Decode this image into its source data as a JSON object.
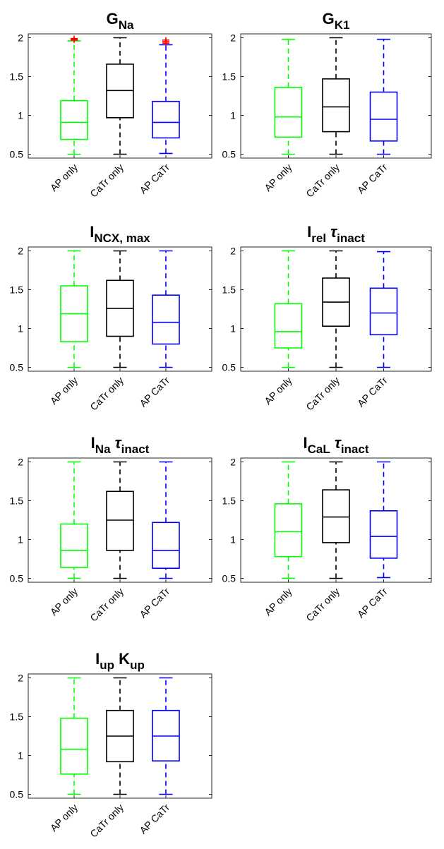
{
  "chart_data": [
    {
      "type": "box",
      "title_parts": [
        {
          "text": "G",
          "sub": false,
          "greek": false
        },
        {
          "text": "Na",
          "sub": true,
          "greek": false
        }
      ],
      "categories": [
        "AP only",
        "CaTr only",
        "AP CaTr"
      ],
      "colors": [
        "#00ff00",
        "#000000",
        "#0000ff"
      ],
      "ylim": [
        0.45,
        2.05
      ],
      "yticks": [
        0.5,
        1,
        1.5,
        2
      ],
      "series": [
        {
          "min": 0.5,
          "q1": 0.69,
          "median": 0.91,
          "q3": 1.19,
          "max": 1.96,
          "outliers": [
            1.97,
            1.98,
            1.99
          ]
        },
        {
          "min": 0.5,
          "q1": 0.97,
          "median": 1.32,
          "q3": 1.66,
          "max": 2.0,
          "outliers": []
        },
        {
          "min": 0.51,
          "q1": 0.71,
          "median": 0.91,
          "q3": 1.18,
          "max": 1.91,
          "outliers": [
            1.93,
            1.95,
            1.97
          ]
        }
      ]
    },
    {
      "type": "box",
      "title_parts": [
        {
          "text": "G",
          "sub": false,
          "greek": false
        },
        {
          "text": "K1",
          "sub": true,
          "greek": false
        }
      ],
      "categories": [
        "AP only",
        "CaTr only",
        "AP CaTr"
      ],
      "colors": [
        "#00ff00",
        "#000000",
        "#0000ff"
      ],
      "ylim": [
        0.45,
        2.05
      ],
      "yticks": [
        0.5,
        1,
        1.5,
        2
      ],
      "series": [
        {
          "min": 0.5,
          "q1": 0.72,
          "median": 0.98,
          "q3": 1.36,
          "max": 1.98,
          "outliers": []
        },
        {
          "min": 0.5,
          "q1": 0.79,
          "median": 1.11,
          "q3": 1.47,
          "max": 2.0,
          "outliers": []
        },
        {
          "min": 0.5,
          "q1": 0.67,
          "median": 0.95,
          "q3": 1.3,
          "max": 1.98,
          "outliers": []
        }
      ]
    },
    {
      "type": "box",
      "title_parts": [
        {
          "text": "I",
          "sub": false,
          "greek": false
        },
        {
          "text": "NCX, max",
          "sub": true,
          "greek": false
        }
      ],
      "categories": [
        "AP only",
        "CaTr only",
        "AP CaTr"
      ],
      "colors": [
        "#00ff00",
        "#000000",
        "#0000ff"
      ],
      "ylim": [
        0.45,
        2.05
      ],
      "yticks": [
        0.5,
        1,
        1.5,
        2
      ],
      "series": [
        {
          "min": 0.5,
          "q1": 0.83,
          "median": 1.19,
          "q3": 1.55,
          "max": 2.0,
          "outliers": []
        },
        {
          "min": 0.5,
          "q1": 0.9,
          "median": 1.26,
          "q3": 1.62,
          "max": 2.0,
          "outliers": []
        },
        {
          "min": 0.5,
          "q1": 0.8,
          "median": 1.08,
          "q3": 1.43,
          "max": 2.0,
          "outliers": []
        }
      ]
    },
    {
      "type": "box",
      "title_parts": [
        {
          "text": "I",
          "sub": false,
          "greek": false
        },
        {
          "text": "rel",
          "sub": true,
          "greek": false
        },
        {
          "text": " τ",
          "sub": false,
          "greek": true
        },
        {
          "text": "inact",
          "sub": true,
          "greek": false
        }
      ],
      "categories": [
        "AP only",
        "CaTr only",
        "AP CaTr"
      ],
      "colors": [
        "#00ff00",
        "#000000",
        "#0000ff"
      ],
      "ylim": [
        0.45,
        2.05
      ],
      "yticks": [
        0.5,
        1,
        1.5,
        2
      ],
      "series": [
        {
          "min": 0.5,
          "q1": 0.75,
          "median": 0.96,
          "q3": 1.32,
          "max": 2.0,
          "outliers": []
        },
        {
          "min": 0.5,
          "q1": 1.03,
          "median": 1.34,
          "q3": 1.65,
          "max": 2.0,
          "outliers": []
        },
        {
          "min": 0.5,
          "q1": 0.92,
          "median": 1.2,
          "q3": 1.52,
          "max": 1.99,
          "outliers": []
        }
      ]
    },
    {
      "type": "box",
      "title_parts": [
        {
          "text": "I",
          "sub": false,
          "greek": false
        },
        {
          "text": "Na",
          "sub": true,
          "greek": false
        },
        {
          "text": " τ",
          "sub": false,
          "greek": true
        },
        {
          "text": "inact",
          "sub": true,
          "greek": false
        }
      ],
      "categories": [
        "AP only",
        "CaTr only",
        "AP CaTr"
      ],
      "colors": [
        "#00ff00",
        "#000000",
        "#0000ff"
      ],
      "ylim": [
        0.45,
        2.05
      ],
      "yticks": [
        0.5,
        1,
        1.5,
        2
      ],
      "series": [
        {
          "min": 0.5,
          "q1": 0.64,
          "median": 0.86,
          "q3": 1.2,
          "max": 2.0,
          "outliers": []
        },
        {
          "min": 0.5,
          "q1": 0.86,
          "median": 1.25,
          "q3": 1.62,
          "max": 2.0,
          "outliers": []
        },
        {
          "min": 0.5,
          "q1": 0.63,
          "median": 0.86,
          "q3": 1.22,
          "max": 2.0,
          "outliers": []
        }
      ]
    },
    {
      "type": "box",
      "title_parts": [
        {
          "text": "I",
          "sub": false,
          "greek": false
        },
        {
          "text": "CaL",
          "sub": true,
          "greek": false
        },
        {
          "text": " τ",
          "sub": false,
          "greek": true
        },
        {
          "text": "inact",
          "sub": true,
          "greek": false
        }
      ],
      "categories": [
        "AP only",
        "CaTr only",
        "AP CaTr"
      ],
      "colors": [
        "#00ff00",
        "#000000",
        "#0000ff"
      ],
      "ylim": [
        0.45,
        2.05
      ],
      "yticks": [
        0.5,
        1,
        1.5,
        2
      ],
      "series": [
        {
          "min": 0.5,
          "q1": 0.78,
          "median": 1.1,
          "q3": 1.46,
          "max": 2.0,
          "outliers": []
        },
        {
          "min": 0.5,
          "q1": 0.96,
          "median": 1.29,
          "q3": 1.64,
          "max": 2.0,
          "outliers": []
        },
        {
          "min": 0.51,
          "q1": 0.76,
          "median": 1.04,
          "q3": 1.37,
          "max": 2.0,
          "outliers": []
        }
      ]
    },
    {
      "type": "box",
      "title_parts": [
        {
          "text": "I",
          "sub": false,
          "greek": false
        },
        {
          "text": "up",
          "sub": true,
          "greek": false
        },
        {
          "text": " K",
          "sub": false,
          "greek": false
        },
        {
          "text": "up",
          "sub": true,
          "greek": false
        }
      ],
      "categories": [
        "AP only",
        "CaTr only",
        "AP CaTr"
      ],
      "colors": [
        "#00ff00",
        "#000000",
        "#0000ff"
      ],
      "ylim": [
        0.45,
        2.05
      ],
      "yticks": [
        0.5,
        1,
        1.5,
        2
      ],
      "series": [
        {
          "min": 0.5,
          "q1": 0.76,
          "median": 1.08,
          "q3": 1.48,
          "max": 2.0,
          "outliers": []
        },
        {
          "min": 0.5,
          "q1": 0.92,
          "median": 1.25,
          "q3": 1.58,
          "max": 2.0,
          "outliers": []
        },
        {
          "min": 0.5,
          "q1": 0.93,
          "median": 1.25,
          "q3": 1.58,
          "max": 2.0,
          "outliers": []
        }
      ]
    }
  ]
}
